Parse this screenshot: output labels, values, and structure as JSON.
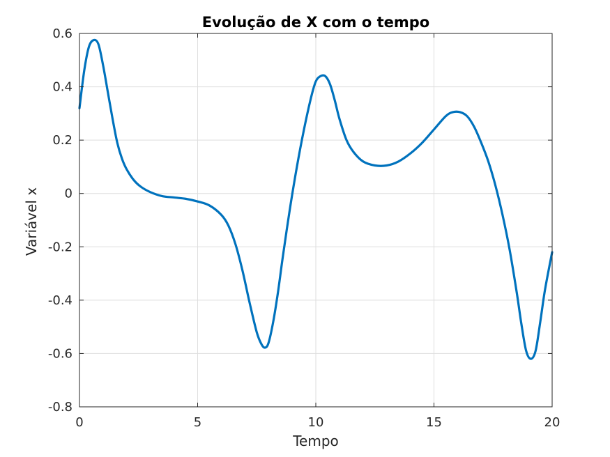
{
  "chart_data": {
    "type": "line",
    "title": "Evolução de X com o tempo",
    "xlabel": "Tempo",
    "ylabel": "Variável x",
    "xlim": [
      0,
      20
    ],
    "ylim": [
      -0.8,
      0.6
    ],
    "xticks": [
      0,
      5,
      10,
      15,
      20
    ],
    "xtick_labels": [
      "0",
      "5",
      "10",
      "15",
      "20"
    ],
    "yticks": [
      -0.8,
      -0.6,
      -0.4,
      -0.2,
      0,
      0.2,
      0.4,
      0.6
    ],
    "ytick_labels": [
      "-0.8",
      "-0.6",
      "-0.4",
      "-0.2",
      "0",
      "0.2",
      "0.4",
      "0.6"
    ],
    "grid": true,
    "box": true,
    "series": [
      {
        "color": "#0072bd",
        "x": [
          0,
          0.2,
          0.4,
          0.6,
          0.8,
          1.0,
          1.2,
          1.4,
          1.6,
          1.8,
          2.0,
          2.3,
          2.6,
          3.0,
          3.5,
          4.0,
          4.5,
          5.0,
          5.5,
          6.0,
          6.3,
          6.6,
          6.9,
          7.2,
          7.5,
          7.7,
          7.85,
          8.0,
          8.2,
          8.4,
          8.6,
          8.9,
          9.2,
          9.5,
          9.8,
          10.0,
          10.2,
          10.4,
          10.6,
          10.8,
          11.0,
          11.3,
          11.6,
          12.0,
          12.5,
          13.0,
          13.5,
          14.0,
          14.5,
          15.0,
          15.5,
          15.8,
          16.1,
          16.4,
          16.7,
          17.0,
          17.3,
          17.6,
          17.9,
          18.2,
          18.5,
          18.7,
          18.9,
          19.1,
          19.3,
          19.5,
          19.7,
          20.0
        ],
        "y": [
          0.32,
          0.46,
          0.55,
          0.575,
          0.56,
          0.48,
          0.38,
          0.28,
          0.19,
          0.13,
          0.09,
          0.05,
          0.025,
          0.005,
          -0.01,
          -0.015,
          -0.02,
          -0.03,
          -0.045,
          -0.08,
          -0.12,
          -0.19,
          -0.29,
          -0.41,
          -0.52,
          -0.565,
          -0.578,
          -0.56,
          -0.48,
          -0.37,
          -0.24,
          -0.06,
          0.1,
          0.24,
          0.36,
          0.42,
          0.44,
          0.44,
          0.41,
          0.35,
          0.28,
          0.2,
          0.155,
          0.12,
          0.105,
          0.105,
          0.12,
          0.15,
          0.19,
          0.24,
          0.29,
          0.305,
          0.305,
          0.29,
          0.25,
          0.19,
          0.12,
          0.03,
          -0.08,
          -0.21,
          -0.37,
          -0.49,
          -0.59,
          -0.62,
          -0.59,
          -0.48,
          -0.36,
          -0.22
        ]
      }
    ]
  }
}
